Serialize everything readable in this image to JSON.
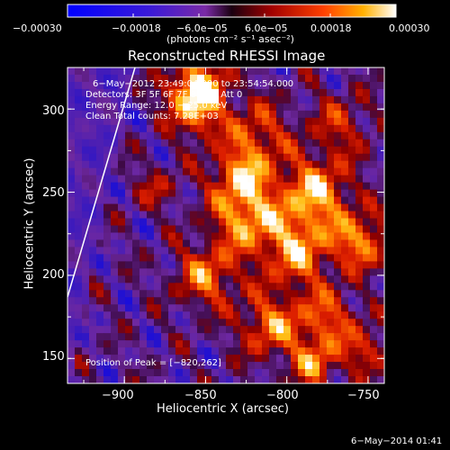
{
  "chart_data": {
    "type": "heatmap",
    "title": "Reconstructed RHESSI Image",
    "xlabel": "Heliocentric X (arcsec)",
    "ylabel": "Heliocentric Y (arcsec)",
    "xlim": [
      -935,
      -740
    ],
    "ylim": [
      135,
      325
    ],
    "xticks": [
      "−900",
      "−850",
      "−800",
      "−750"
    ],
    "xtick_values": [
      -900,
      -850,
      -800,
      -750
    ],
    "yticks": [
      "300",
      "250",
      "200",
      "150"
    ],
    "ytick_values": [
      300,
      250,
      200,
      150
    ],
    "colorbar": {
      "range": [
        -0.0003,
        0.0003
      ],
      "ticks": [
        "−0.00030",
        "−0.00018",
        "−6.0e−05",
        "6.0e−05",
        "0.00018",
        "0.00030"
      ],
      "tick_values": [
        -0.0003,
        -0.00018,
        -6e-05,
        6e-05,
        0.00018,
        0.0003
      ],
      "unit_label": "(photons cm⁻² s⁻¹ asec⁻²)"
    },
    "annotations": [
      "6−May−2012 23:49:04.000 to 23:54:54.000",
      "Detectors: 3F 5F 6F 7F 8F 9F, Att 0",
      "Energy Range: 12.0 − 25.0 keV",
      "Clean    Total counts: 7.28E+03"
    ],
    "peak_label": "Position of Peak = [−820,262]",
    "peak": [
      -820,
      262
    ],
    "grid": false
  },
  "footer_timestamp": "6−May−2014 01:41"
}
